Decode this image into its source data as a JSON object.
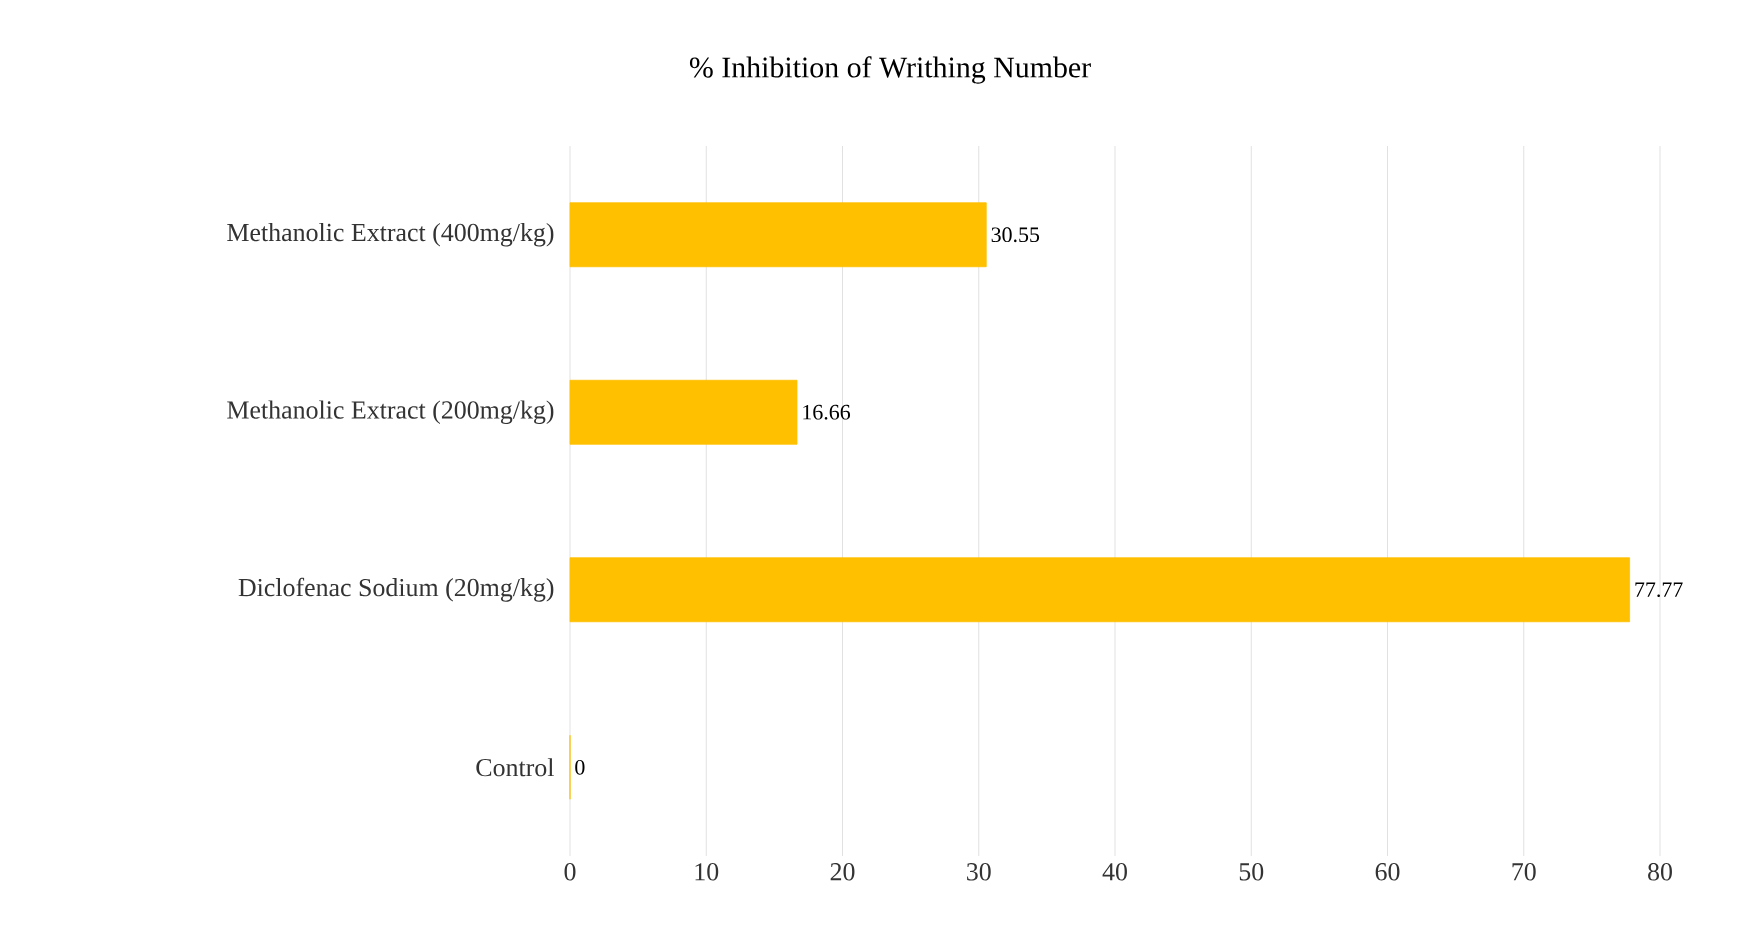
{
  "chart_data": {
    "type": "bar",
    "orientation": "horizontal",
    "title": "% Inhibition of Writhing Number",
    "categories": [
      "Methanolic Extract (400mg/kg)",
      "Methanolic Extract (200mg/kg)",
      "Diclofenac Sodium (20mg/kg)",
      "Control"
    ],
    "values": [
      30.55,
      16.66,
      77.77,
      0
    ],
    "color": "#ffc000",
    "xlim": [
      0,
      80
    ],
    "xticks": [
      0,
      10,
      20,
      30,
      40,
      50,
      60,
      70,
      80
    ],
    "grid": "x",
    "data_labels": true
  }
}
